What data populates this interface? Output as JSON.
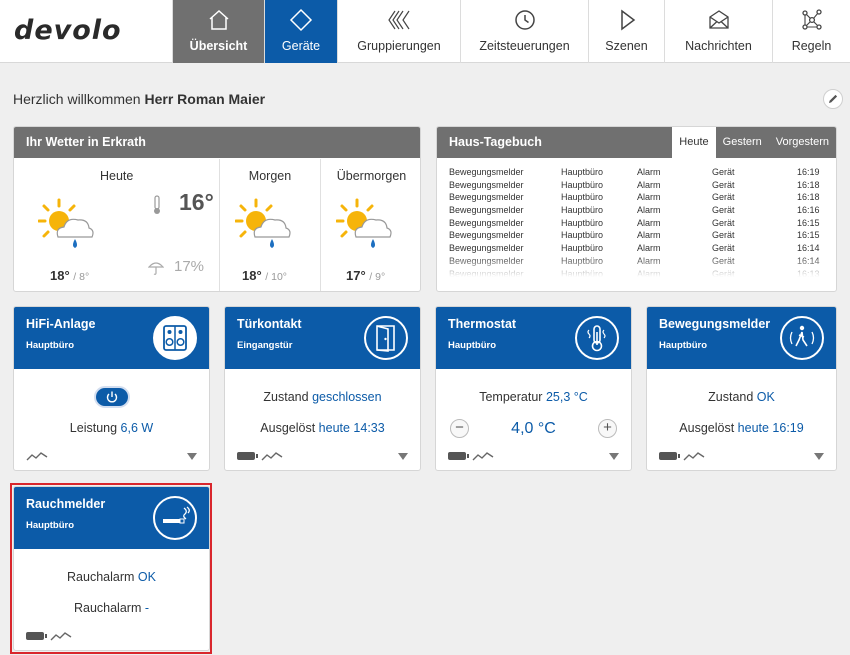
{
  "brand": {
    "logo": "devolo"
  },
  "nav": [
    {
      "label": "Übersicht",
      "icon": "home-icon"
    },
    {
      "label": "Geräte",
      "icon": "diamond-icon"
    },
    {
      "label": "Gruppierungen",
      "icon": "groups-icon"
    },
    {
      "label": "Zeitsteuerungen",
      "icon": "clock-icon"
    },
    {
      "label": "Szenen",
      "icon": "play-icon"
    },
    {
      "label": "Nachrichten",
      "icon": "envelope-icon"
    },
    {
      "label": "Regeln",
      "icon": "network-icon"
    }
  ],
  "welcome": {
    "prefix": "Herzlich willkommen",
    "name": "Herr Roman Maier"
  },
  "weather": {
    "title": "Ihr Wetter in Erkrath",
    "today": {
      "label": "Heute",
      "now_temp": "16°",
      "rain": "17%",
      "high": "18°",
      "low": "/ 8°"
    },
    "tomorrow": {
      "label": "Morgen",
      "high": "18°",
      "low": "/ 10°"
    },
    "day_after": {
      "label": "Übermorgen",
      "high": "17°",
      "low": "/ 9°"
    }
  },
  "diary": {
    "title": "Haus-Tagebuch",
    "tabs": [
      "Heute",
      "Gestern",
      "Vorgestern"
    ],
    "rows": [
      {
        "device": "Bewegungsmelder",
        "room": "Hauptbüro",
        "type": "Alarm",
        "source": "Gerät",
        "time": "16:19"
      },
      {
        "device": "Bewegungsmelder",
        "room": "Hauptbüro",
        "type": "Alarm",
        "source": "Gerät",
        "time": "16:18"
      },
      {
        "device": "Bewegungsmelder",
        "room": "Hauptbüro",
        "type": "Alarm",
        "source": "Gerät",
        "time": "16:18"
      },
      {
        "device": "Bewegungsmelder",
        "room": "Hauptbüro",
        "type": "Alarm",
        "source": "Gerät",
        "time": "16:16"
      },
      {
        "device": "Bewegungsmelder",
        "room": "Hauptbüro",
        "type": "Alarm",
        "source": "Gerät",
        "time": "16:15"
      },
      {
        "device": "Bewegungsmelder",
        "room": "Hauptbüro",
        "type": "Alarm",
        "source": "Gerät",
        "time": "16:15"
      },
      {
        "device": "Bewegungsmelder",
        "room": "Hauptbüro",
        "type": "Alarm",
        "source": "Gerät",
        "time": "16:14"
      },
      {
        "device": "Bewegungsmelder",
        "room": "Hauptbüro",
        "type": "Alarm",
        "source": "Gerät",
        "time": "16:14"
      },
      {
        "device": "Bewegungsmelder",
        "room": "Hauptbüro",
        "type": "Alarm",
        "source": "Gerät",
        "time": "16:13"
      }
    ]
  },
  "devices": {
    "hifi": {
      "title": "HiFi-Anlage",
      "room": "Hauptbüro",
      "label": "Leistung",
      "value": "6,6 W"
    },
    "door": {
      "title": "Türkontakt",
      "room": "Eingangstür",
      "state_label": "Zustand",
      "state_value": "geschlossen",
      "trig_label": "Ausgelöst",
      "trig_value": "heute 14:33"
    },
    "thermo": {
      "title": "Thermostat",
      "room": "Hauptbüro",
      "temp_label": "Temperatur",
      "temp_value": "25,3 °C",
      "setpoint": "4,0 °C",
      "minus": "−",
      "plus": "+"
    },
    "motion": {
      "title": "Bewegungsmelder",
      "room": "Hauptbüro",
      "state_label": "Zustand",
      "state_value": "OK",
      "trig_label": "Ausgelöst",
      "trig_value": "heute 16:19"
    },
    "smoke": {
      "title": "Rauchmelder",
      "room": "Hauptbüro",
      "line1_label": "Rauchalarm",
      "line1_value": "OK",
      "line2_label": "Rauchalarm",
      "line2_value": "-"
    }
  },
  "colors": {
    "brand_blue": "#0c5ba8",
    "header_gray": "#707070",
    "selection_red": "#d9262c"
  }
}
